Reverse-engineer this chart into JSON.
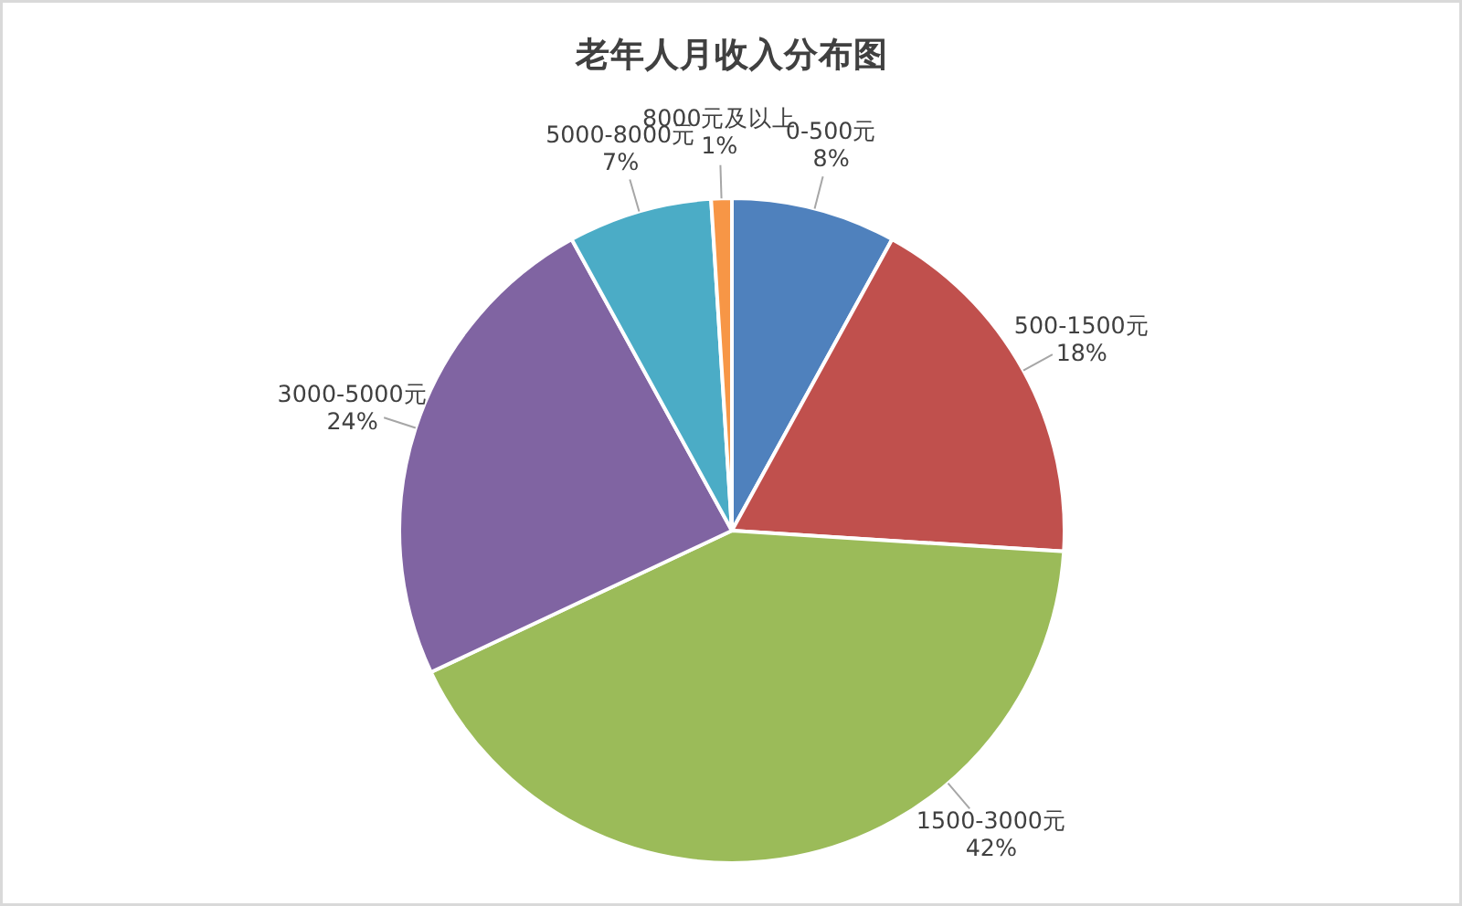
{
  "chart_data": {
    "type": "pie",
    "title": "老年人月收入分布图",
    "categories": [
      "0-500元",
      "500-1500元",
      "1500-3000元",
      "3000-5000元",
      "5000-8000元",
      "8000元及以上"
    ],
    "values": [
      8,
      18,
      42,
      24,
      7,
      1
    ],
    "value_labels": [
      "8%",
      "18%",
      "42%",
      "24%",
      "7%",
      "1%"
    ],
    "colors": [
      "#4f81bd",
      "#c0504d",
      "#9bbb59",
      "#8064a2",
      "#4bacc6",
      "#f79646"
    ]
  }
}
